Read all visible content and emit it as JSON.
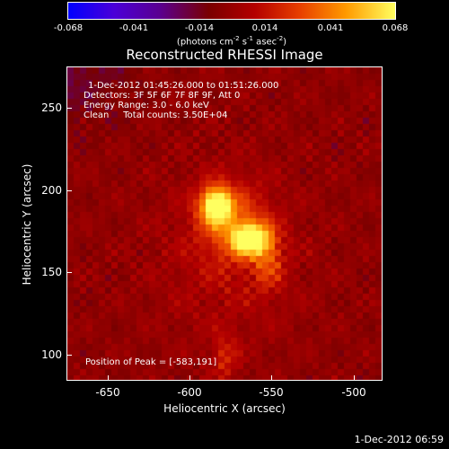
{
  "colorbar": {
    "ticks": [
      "-0.068",
      "-0.041",
      "-0.014",
      "0.014",
      "0.041",
      "0.068"
    ],
    "units": "(photons cm",
    "units_exp1": "-2",
    "units_mid": " s",
    "units_exp2": "-1",
    "units_mid2": " asec",
    "units_exp3": "-2",
    "units_end": ")"
  },
  "title": "Reconstructed RHESSI Image",
  "info": {
    "time": "1-Dec-2012 01:45:26.000 to 01:51:26.000",
    "detectors": "Detectors: 3F 5F 6F 7F 8F 9F, Att 0",
    "energy": "Energy Range: 3.0 - 6.0 keV",
    "clean": "Clean     Total counts: 3.50E+04",
    "peak": "Position of Peak = [-583,191]"
  },
  "axes": {
    "xlabel": "Heliocentric X (arcsec)",
    "ylabel": "Heliocentric Y (arcsec)",
    "xticks": [
      "-650",
      "-600",
      "-550",
      "-500"
    ],
    "yticks": [
      "250",
      "200",
      "150",
      "100"
    ]
  },
  "footer": {
    "date": "1-Dec-2012 06:59"
  }
}
